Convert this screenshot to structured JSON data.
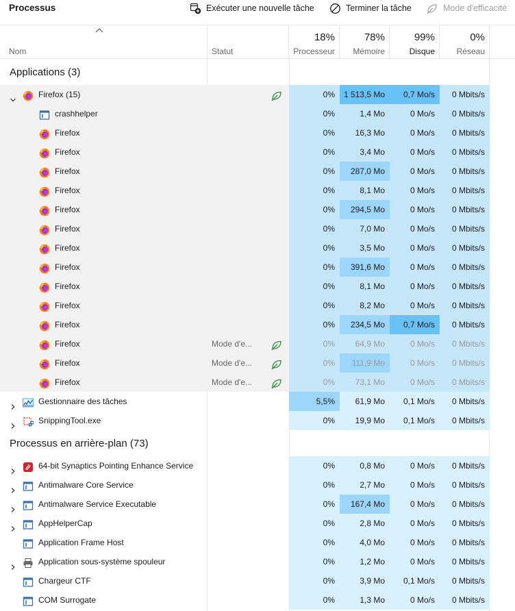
{
  "toolbar": {
    "title": "Processus",
    "run_task_label": "Exécuter une nouvelle tâche",
    "end_task_label": "Terminer la tâche",
    "efficiency_label": "Mode d'efficacité"
  },
  "header": {
    "name_label": "Nom",
    "status_label": "Statut",
    "cpu_pct": "18%",
    "cpu_label": "Processeur",
    "mem_pct": "78%",
    "mem_label": "Mémoire",
    "disk_pct": "99%",
    "disk_label": "Disque",
    "net_pct": "0%",
    "net_label": "Réseau"
  },
  "groups": {
    "apps_title": "Applications (3)",
    "background_title": "Processus en arrière-plan (73)"
  },
  "colors": {
    "heat1": "#d9f0ff",
    "heat2": "#c6e6fa",
    "heat3": "#9dd6fb",
    "heat4": "#66c2f7",
    "selected_row": "#f2f2f2",
    "leaf_green": "#2e8b3a"
  },
  "rows": [
    {
      "name": "Firefox (15)",
      "icon": "firefox-icon",
      "expander": "expanded",
      "indent": 0,
      "status": "",
      "leaf": true,
      "cpu": "0%",
      "mem": "1 513,5 Mo",
      "disk": "0,7 Mo/s",
      "net": "0 Mbits/s",
      "sel": true,
      "dim": false,
      "h": [
        "heat2",
        "heat4",
        "heat4",
        "heat2"
      ]
    },
    {
      "name": "crashhelper",
      "icon": "window-app-icon",
      "expander": "",
      "indent": 1,
      "status": "",
      "leaf": false,
      "cpu": "0%",
      "mem": "1,4 Mo",
      "disk": "0 Mo/s",
      "net": "0 Mbits/s",
      "sel": true,
      "dim": false,
      "h": [
        "heat2",
        "heat2",
        "heat2",
        "heat2"
      ]
    },
    {
      "name": "Firefox",
      "icon": "firefox-icon",
      "expander": "",
      "indent": 1,
      "status": "",
      "leaf": false,
      "cpu": "0%",
      "mem": "16,3 Mo",
      "disk": "0 Mo/s",
      "net": "0 Mbits/s",
      "sel": true,
      "dim": false,
      "h": [
        "heat2",
        "heat2",
        "heat2",
        "heat2"
      ]
    },
    {
      "name": "Firefox",
      "icon": "firefox-icon",
      "expander": "",
      "indent": 1,
      "status": "",
      "leaf": false,
      "cpu": "0%",
      "mem": "3,4 Mo",
      "disk": "0 Mo/s",
      "net": "0 Mbits/s",
      "sel": true,
      "dim": false,
      "h": [
        "heat2",
        "heat2",
        "heat2",
        "heat2"
      ]
    },
    {
      "name": "Firefox",
      "icon": "firefox-icon",
      "expander": "",
      "indent": 1,
      "status": "",
      "leaf": false,
      "cpu": "0%",
      "mem": "287,0 Mo",
      "disk": "0 Mo/s",
      "net": "0 Mbits/s",
      "sel": true,
      "dim": false,
      "h": [
        "heat2",
        "heat3",
        "heat2",
        "heat2"
      ]
    },
    {
      "name": "Firefox",
      "icon": "firefox-icon",
      "expander": "",
      "indent": 1,
      "status": "",
      "leaf": false,
      "cpu": "0%",
      "mem": "8,1 Mo",
      "disk": "0 Mo/s",
      "net": "0 Mbits/s",
      "sel": true,
      "dim": false,
      "h": [
        "heat2",
        "heat2",
        "heat2",
        "heat2"
      ]
    },
    {
      "name": "Firefox",
      "icon": "firefox-icon",
      "expander": "",
      "indent": 1,
      "status": "",
      "leaf": false,
      "cpu": "0%",
      "mem": "294,5 Mo",
      "disk": "0 Mo/s",
      "net": "0 Mbits/s",
      "sel": true,
      "dim": false,
      "h": [
        "heat2",
        "heat3",
        "heat2",
        "heat2"
      ]
    },
    {
      "name": "Firefox",
      "icon": "firefox-icon",
      "expander": "",
      "indent": 1,
      "status": "",
      "leaf": false,
      "cpu": "0%",
      "mem": "7,0 Mo",
      "disk": "0 Mo/s",
      "net": "0 Mbits/s",
      "sel": true,
      "dim": false,
      "h": [
        "heat2",
        "heat2",
        "heat2",
        "heat2"
      ]
    },
    {
      "name": "Firefox",
      "icon": "firefox-icon",
      "expander": "",
      "indent": 1,
      "status": "",
      "leaf": false,
      "cpu": "0%",
      "mem": "3,5 Mo",
      "disk": "0 Mo/s",
      "net": "0 Mbits/s",
      "sel": true,
      "dim": false,
      "h": [
        "heat2",
        "heat2",
        "heat2",
        "heat2"
      ]
    },
    {
      "name": "Firefox",
      "icon": "firefox-icon",
      "expander": "",
      "indent": 1,
      "status": "",
      "leaf": false,
      "cpu": "0%",
      "mem": "391,6 Mo",
      "disk": "0 Mo/s",
      "net": "0 Mbits/s",
      "sel": true,
      "dim": false,
      "h": [
        "heat2",
        "heat3",
        "heat2",
        "heat2"
      ]
    },
    {
      "name": "Firefox",
      "icon": "firefox-icon",
      "expander": "",
      "indent": 1,
      "status": "",
      "leaf": false,
      "cpu": "0%",
      "mem": "8,1 Mo",
      "disk": "0 Mo/s",
      "net": "0 Mbits/s",
      "sel": true,
      "dim": false,
      "h": [
        "heat2",
        "heat2",
        "heat2",
        "heat2"
      ]
    },
    {
      "name": "Firefox",
      "icon": "firefox-icon",
      "expander": "",
      "indent": 1,
      "status": "",
      "leaf": false,
      "cpu": "0%",
      "mem": "8,2 Mo",
      "disk": "0 Mo/s",
      "net": "0 Mbits/s",
      "sel": true,
      "dim": false,
      "h": [
        "heat2",
        "heat2",
        "heat2",
        "heat2"
      ]
    },
    {
      "name": "Firefox",
      "icon": "firefox-icon",
      "expander": "",
      "indent": 1,
      "status": "",
      "leaf": false,
      "cpu": "0%",
      "mem": "234,5 Mo",
      "disk": "0,7 Mo/s",
      "net": "0 Mbits/s",
      "sel": true,
      "dim": false,
      "h": [
        "heat2",
        "heat3",
        "heat4",
        "heat2"
      ]
    },
    {
      "name": "Firefox",
      "icon": "firefox-icon",
      "expander": "",
      "indent": 1,
      "status": "Mode d'e...",
      "leaf": true,
      "cpu": "0%",
      "mem": "64,9 Mo",
      "disk": "0 Mo/s",
      "net": "0 Mbits/s",
      "sel": true,
      "dim": true,
      "h": [
        "heat2",
        "heat2",
        "heat2",
        "heat2"
      ]
    },
    {
      "name": "Firefox",
      "icon": "firefox-icon",
      "expander": "",
      "indent": 1,
      "status": "Mode d'e...",
      "leaf": true,
      "cpu": "0%",
      "mem": "111,9 Mo",
      "disk": "0 Mo/s",
      "net": "0 Mbits/s",
      "sel": true,
      "dim": true,
      "h": [
        "heat2",
        "heat3",
        "heat2",
        "heat2"
      ]
    },
    {
      "name": "Firefox",
      "icon": "firefox-icon",
      "expander": "",
      "indent": 1,
      "status": "Mode d'e...",
      "leaf": true,
      "cpu": "0%",
      "mem": "73,1 Mo",
      "disk": "0 Mo/s",
      "net": "0 Mbits/s",
      "sel": true,
      "dim": true,
      "h": [
        "heat2",
        "heat2",
        "heat2",
        "heat2"
      ]
    },
    {
      "name": "Gestionnaire des tâches",
      "icon": "task-manager-icon",
      "expander": "collapsed",
      "indent": 0,
      "status": "",
      "leaf": false,
      "cpu": "5,5%",
      "mem": "61,9 Mo",
      "disk": "0,1 Mo/s",
      "net": "0 Mbits/s",
      "sel": false,
      "dim": false,
      "h": [
        "heat3",
        "heat1",
        "heat1",
        "heat1"
      ]
    },
    {
      "name": "SnippingTool.exe",
      "icon": "snipping-tool-icon",
      "expander": "collapsed",
      "indent": 0,
      "status": "",
      "leaf": false,
      "cpu": "0%",
      "mem": "19,9 Mo",
      "disk": "0,1 Mo/s",
      "net": "0 Mbits/s",
      "sel": false,
      "dim": false,
      "h": [
        "heat1",
        "heat1",
        "heat1",
        "heat1"
      ]
    },
    {
      "name": "64-bit Synaptics Pointing Enhance Service",
      "icon": "synaptics-icon",
      "expander": "collapsed",
      "indent": 0,
      "status": "",
      "leaf": false,
      "cpu": "0%",
      "mem": "0,8 Mo",
      "disk": "0 Mo/s",
      "net": "0 Mbits/s",
      "sel": false,
      "dim": false,
      "h": [
        "heat1",
        "heat1",
        "heat1",
        "heat1"
      ]
    },
    {
      "name": "Antimalware Core Service",
      "icon": "window-app-icon",
      "expander": "collapsed",
      "indent": 0,
      "status": "",
      "leaf": false,
      "cpu": "0%",
      "mem": "2,7 Mo",
      "disk": "0 Mo/s",
      "net": "0 Mbits/s",
      "sel": false,
      "dim": false,
      "h": [
        "heat1",
        "heat1",
        "heat1",
        "heat1"
      ]
    },
    {
      "name": "Antimalware Service Executable",
      "icon": "window-app-icon",
      "expander": "collapsed",
      "indent": 0,
      "status": "",
      "leaf": false,
      "cpu": "0%",
      "mem": "167,4 Mo",
      "disk": "0 Mo/s",
      "net": "0 Mbits/s",
      "sel": false,
      "dim": false,
      "h": [
        "heat1",
        "heat3",
        "heat1",
        "heat1"
      ]
    },
    {
      "name": "AppHelperCap",
      "icon": "window-app-icon",
      "expander": "collapsed",
      "indent": 0,
      "status": "",
      "leaf": false,
      "cpu": "0%",
      "mem": "2,8 Mo",
      "disk": "0 Mo/s",
      "net": "0 Mbits/s",
      "sel": false,
      "dim": false,
      "h": [
        "heat1",
        "heat1",
        "heat1",
        "heat1"
      ]
    },
    {
      "name": "Application Frame Host",
      "icon": "window-app-icon",
      "expander": "",
      "indent": 0,
      "status": "",
      "leaf": false,
      "cpu": "0%",
      "mem": "4,0 Mo",
      "disk": "0 Mo/s",
      "net": "0 Mbits/s",
      "sel": false,
      "dim": false,
      "h": [
        "heat1",
        "heat1",
        "heat1",
        "heat1"
      ]
    },
    {
      "name": "Application sous-système spouleur",
      "icon": "printer-icon",
      "expander": "collapsed",
      "indent": 0,
      "status": "",
      "leaf": false,
      "cpu": "0%",
      "mem": "1,2 Mo",
      "disk": "0 Mo/s",
      "net": "0 Mbits/s",
      "sel": false,
      "dim": false,
      "h": [
        "heat1",
        "heat1",
        "heat1",
        "heat1"
      ]
    },
    {
      "name": "Chargeur CTF",
      "icon": "window-app-icon",
      "expander": "",
      "indent": 0,
      "status": "",
      "leaf": false,
      "cpu": "0%",
      "mem": "3,9 Mo",
      "disk": "0,1 Mo/s",
      "net": "0 Mbits/s",
      "sel": false,
      "dim": false,
      "h": [
        "heat1",
        "heat1",
        "heat1",
        "heat1"
      ]
    },
    {
      "name": "COM Surrogate",
      "icon": "window-app-icon",
      "expander": "",
      "indent": 0,
      "status": "",
      "leaf": false,
      "cpu": "0%",
      "mem": "1,3 Mo",
      "disk": "0 Mo/s",
      "net": "0 Mbits/s",
      "sel": false,
      "dim": false,
      "h": [
        "heat1",
        "heat1",
        "heat1",
        "heat1"
      ]
    }
  ]
}
